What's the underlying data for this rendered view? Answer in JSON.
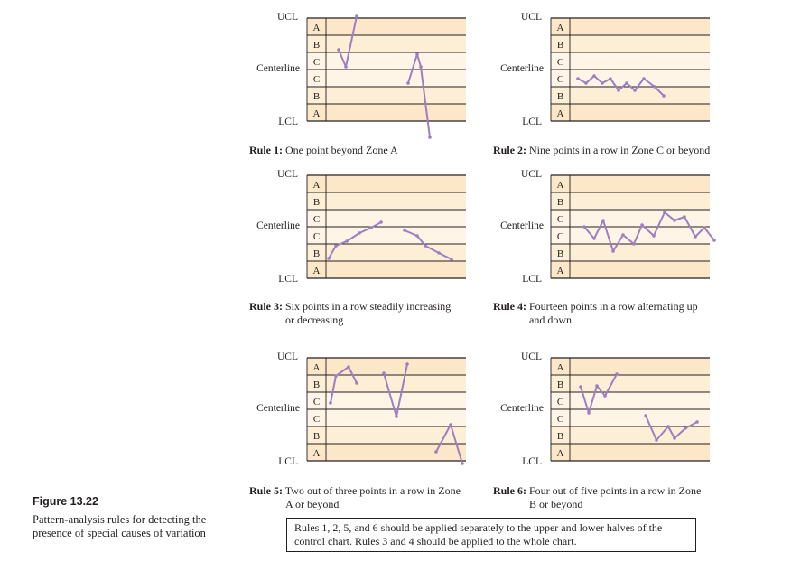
{
  "labels": {
    "ucl": "UCL",
    "centerline": "Centerline",
    "lcl": "LCL"
  },
  "zones": [
    "A",
    "B",
    "C",
    "C",
    "B",
    "A"
  ],
  "colors": {
    "zone_a": "#fce8c8",
    "zone_b": "#fdeed6",
    "zone_c": "#fef5e6",
    "line": "#9e7ec0",
    "ink": "#231f20"
  },
  "rules": [
    {
      "rule_label": "Rule 1:",
      "line1": "One point beyond Zone A",
      "line2": ""
    },
    {
      "rule_label": "Rule 2:",
      "line1": "Nine points in a row in Zone C or beyond",
      "line2": ""
    },
    {
      "rule_label": "Rule 3:",
      "line1": "Six points in a row steadily increasing",
      "line2": "or decreasing"
    },
    {
      "rule_label": "Rule 4:",
      "line1": "Fourteen points in a row alternating up",
      "line2": "and down"
    },
    {
      "rule_label": "Rule 5:",
      "line1": "Two out of three points in a row in Zone",
      "line2": "A or beyond"
    },
    {
      "rule_label": "Rule 6:",
      "line1": "Four out of five points in a row in Zone",
      "line2": "B or beyond"
    }
  ],
  "figure": {
    "title": "Figure 13.22",
    "description": "Pattern-analysis rules for detecting the presence of special causes of variation"
  },
  "note": "Rules 1, 2, 5, and 6 should be applied separately to the upper and lower halves of the control chart. Rules 3 and 4 should be applied to the whole chart."
}
